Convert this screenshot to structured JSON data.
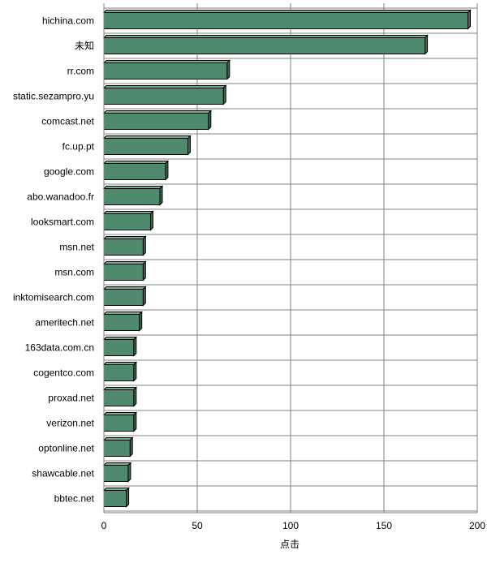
{
  "chart_data": {
    "type": "bar",
    "orientation": "horizontal",
    "categories": [
      "hichina.com",
      "未知",
      "rr.com",
      "static.sezampro.yu",
      "comcast.net",
      "fc.up.pt",
      "google.com",
      "abo.wanadoo.fr",
      "looksmart.com",
      "msn.net",
      "msn.com",
      "inktomisearch.com",
      "ameritech.net",
      "163data.com.cn",
      "cogentco.com",
      "proxad.net",
      "verizon.net",
      "optonline.net",
      "shawcable.net",
      "bbtec.net"
    ],
    "values": [
      195,
      172,
      66,
      64,
      56,
      45,
      33,
      30,
      25,
      21,
      21,
      21,
      19,
      16,
      16,
      16,
      16,
      14,
      13,
      12
    ],
    "xlabel": "点击",
    "ylabel": "",
    "xlim": [
      0,
      200
    ],
    "xticks": [
      "0",
      "50",
      "100",
      "150",
      "200"
    ],
    "grid": true,
    "legend": "none",
    "bar_color": "#4f8a6e",
    "bar_side_color": "#3b6b54",
    "bar_top_color": "#77ad93",
    "bar_edge_color": "#000000",
    "grid_color": "#808080"
  }
}
